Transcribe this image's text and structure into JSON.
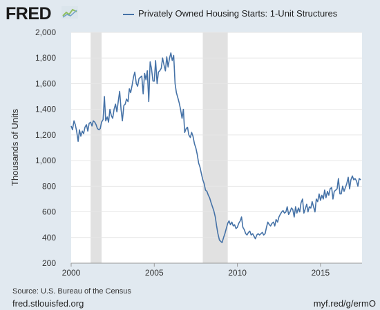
{
  "header": {
    "logo_text": "FRED",
    "logo_icon": "fred-chart-logo-icon",
    "legend_label": "Privately Owned Housing Starts: 1-Unit Structures",
    "legend_color": "#4572a7"
  },
  "footer": {
    "source": "Source: U.S. Bureau of the Census",
    "site": "fred.stlouisfed.org",
    "short_url": "myf.red/g/ermO"
  },
  "chart_data": {
    "type": "line",
    "title": "",
    "xlabel": "",
    "ylabel": "Thousands of Units",
    "xlim": [
      2000,
      2017.5
    ],
    "ylim": [
      200,
      2000
    ],
    "y_ticks": [
      200,
      400,
      600,
      800,
      1000,
      1200,
      1400,
      1600,
      1800,
      2000
    ],
    "x_ticks": [
      2000,
      2005,
      2010,
      2015
    ],
    "y_tick_labels": [
      "200",
      "400",
      "600",
      "800",
      "1,000",
      "1,200",
      "1,400",
      "1,600",
      "1,800",
      "2,000"
    ],
    "x_tick_labels": [
      "2000",
      "2005",
      "2010",
      "2015"
    ],
    "grid": true,
    "line_color": "#4572a7",
    "recessions": [
      [
        2001.17,
        2001.83
      ],
      [
        2007.92,
        2009.42
      ]
    ],
    "series": [
      {
        "name": "Privately Owned Housing Starts: 1-Unit Structures",
        "x": [
          2000.0,
          2000.08,
          2000.17,
          2000.25,
          2000.33,
          2000.42,
          2000.5,
          2000.58,
          2000.67,
          2000.75,
          2000.83,
          2000.92,
          2001.0,
          2001.08,
          2001.17,
          2001.25,
          2001.33,
          2001.42,
          2001.5,
          2001.58,
          2001.67,
          2001.75,
          2001.83,
          2001.92,
          2002.0,
          2002.08,
          2002.17,
          2002.25,
          2002.33,
          2002.42,
          2002.5,
          2002.58,
          2002.67,
          2002.75,
          2002.83,
          2002.92,
          2003.0,
          2003.08,
          2003.17,
          2003.25,
          2003.33,
          2003.42,
          2003.5,
          2003.58,
          2003.67,
          2003.75,
          2003.83,
          2003.92,
          2004.0,
          2004.08,
          2004.17,
          2004.25,
          2004.33,
          2004.42,
          2004.5,
          2004.58,
          2004.67,
          2004.75,
          2004.83,
          2004.92,
          2005.0,
          2005.08,
          2005.17,
          2005.25,
          2005.33,
          2005.42,
          2005.5,
          2005.58,
          2005.67,
          2005.75,
          2005.83,
          2005.92,
          2006.0,
          2006.08,
          2006.17,
          2006.25,
          2006.33,
          2006.42,
          2006.5,
          2006.58,
          2006.67,
          2006.75,
          2006.83,
          2006.92,
          2007.0,
          2007.08,
          2007.17,
          2007.25,
          2007.33,
          2007.42,
          2007.5,
          2007.58,
          2007.67,
          2007.75,
          2007.83,
          2007.92,
          2008.0,
          2008.08,
          2008.17,
          2008.25,
          2008.33,
          2008.42,
          2008.5,
          2008.58,
          2008.67,
          2008.75,
          2008.83,
          2008.92,
          2009.0,
          2009.08,
          2009.17,
          2009.25,
          2009.33,
          2009.42,
          2009.5,
          2009.58,
          2009.67,
          2009.75,
          2009.83,
          2009.92,
          2010.0,
          2010.08,
          2010.17,
          2010.25,
          2010.33,
          2010.42,
          2010.5,
          2010.58,
          2010.67,
          2010.75,
          2010.83,
          2010.92,
          2011.0,
          2011.08,
          2011.17,
          2011.25,
          2011.33,
          2011.42,
          2011.5,
          2011.58,
          2011.67,
          2011.75,
          2011.83,
          2011.92,
          2012.0,
          2012.08,
          2012.17,
          2012.25,
          2012.33,
          2012.42,
          2012.5,
          2012.58,
          2012.67,
          2012.75,
          2012.83,
          2012.92,
          2013.0,
          2013.08,
          2013.17,
          2013.25,
          2013.33,
          2013.42,
          2013.5,
          2013.58,
          2013.67,
          2013.75,
          2013.83,
          2013.92,
          2014.0,
          2014.08,
          2014.17,
          2014.25,
          2014.33,
          2014.42,
          2014.5,
          2014.58,
          2014.67,
          2014.75,
          2014.83,
          2014.92,
          2015.0,
          2015.08,
          2015.17,
          2015.25,
          2015.33,
          2015.42,
          2015.5,
          2015.58,
          2015.67,
          2015.75,
          2015.83,
          2015.92,
          2016.0,
          2016.08,
          2016.17,
          2016.25,
          2016.33,
          2016.42,
          2016.5,
          2016.58,
          2016.67,
          2016.75,
          2016.83,
          2016.92,
          2017.0,
          2017.08,
          2017.17,
          2017.25,
          2017.33,
          2017.42
        ],
        "y": [
          1270,
          1240,
          1310,
          1280,
          1230,
          1150,
          1240,
          1190,
          1230,
          1210,
          1260,
          1280,
          1230,
          1290,
          1300,
          1270,
          1310,
          1300,
          1280,
          1250,
          1240,
          1250,
          1300,
          1320,
          1500,
          1310,
          1340,
          1300,
          1400,
          1350,
          1330,
          1400,
          1440,
          1380,
          1460,
          1540,
          1400,
          1310,
          1430,
          1440,
          1480,
          1460,
          1560,
          1530,
          1590,
          1650,
          1690,
          1600,
          1580,
          1640,
          1650,
          1660,
          1520,
          1680,
          1630,
          1700,
          1460,
          1770,
          1720,
          1620,
          1620,
          1780,
          1600,
          1690,
          1700,
          1720,
          1800,
          1750,
          1700,
          1810,
          1730,
          1800,
          1840,
          1780,
          1820,
          1600,
          1530,
          1490,
          1450,
          1400,
          1330,
          1400,
          1220,
          1250,
          1260,
          1200,
          1180,
          1220,
          1190,
          1130,
          1100,
          1050,
          980,
          950,
          900,
          850,
          820,
          770,
          760,
          730,
          710,
          670,
          640,
          610,
          560,
          490,
          430,
          380,
          370,
          360,
          400,
          430,
          470,
          510,
          530,
          500,
          520,
          490,
          500,
          470,
          480,
          510,
          530,
          560,
          480,
          460,
          430,
          420,
          440,
          450,
          420,
          430,
          410,
          390,
          420,
          430,
          420,
          430,
          440,
          420,
          430,
          480,
          520,
          500,
          490,
          510,
          520,
          490,
          540,
          520,
          560,
          580,
          600,
          610,
          590,
          600,
          640,
          580,
          600,
          630,
          620,
          560,
          640,
          590,
          630,
          600,
          670,
          700,
          590,
          620,
          660,
          600,
          640,
          630,
          680,
          640,
          600,
          700,
          680,
          740,
          690,
          730,
          700,
          770,
          710,
          760,
          730,
          780,
          790,
          700,
          760,
          770,
          780,
          860,
          740,
          740,
          800,
          760,
          790,
          820,
          870,
          780,
          850,
          880,
          850,
          860,
          840,
          800,
          860,
          850
        ]
      }
    ]
  }
}
